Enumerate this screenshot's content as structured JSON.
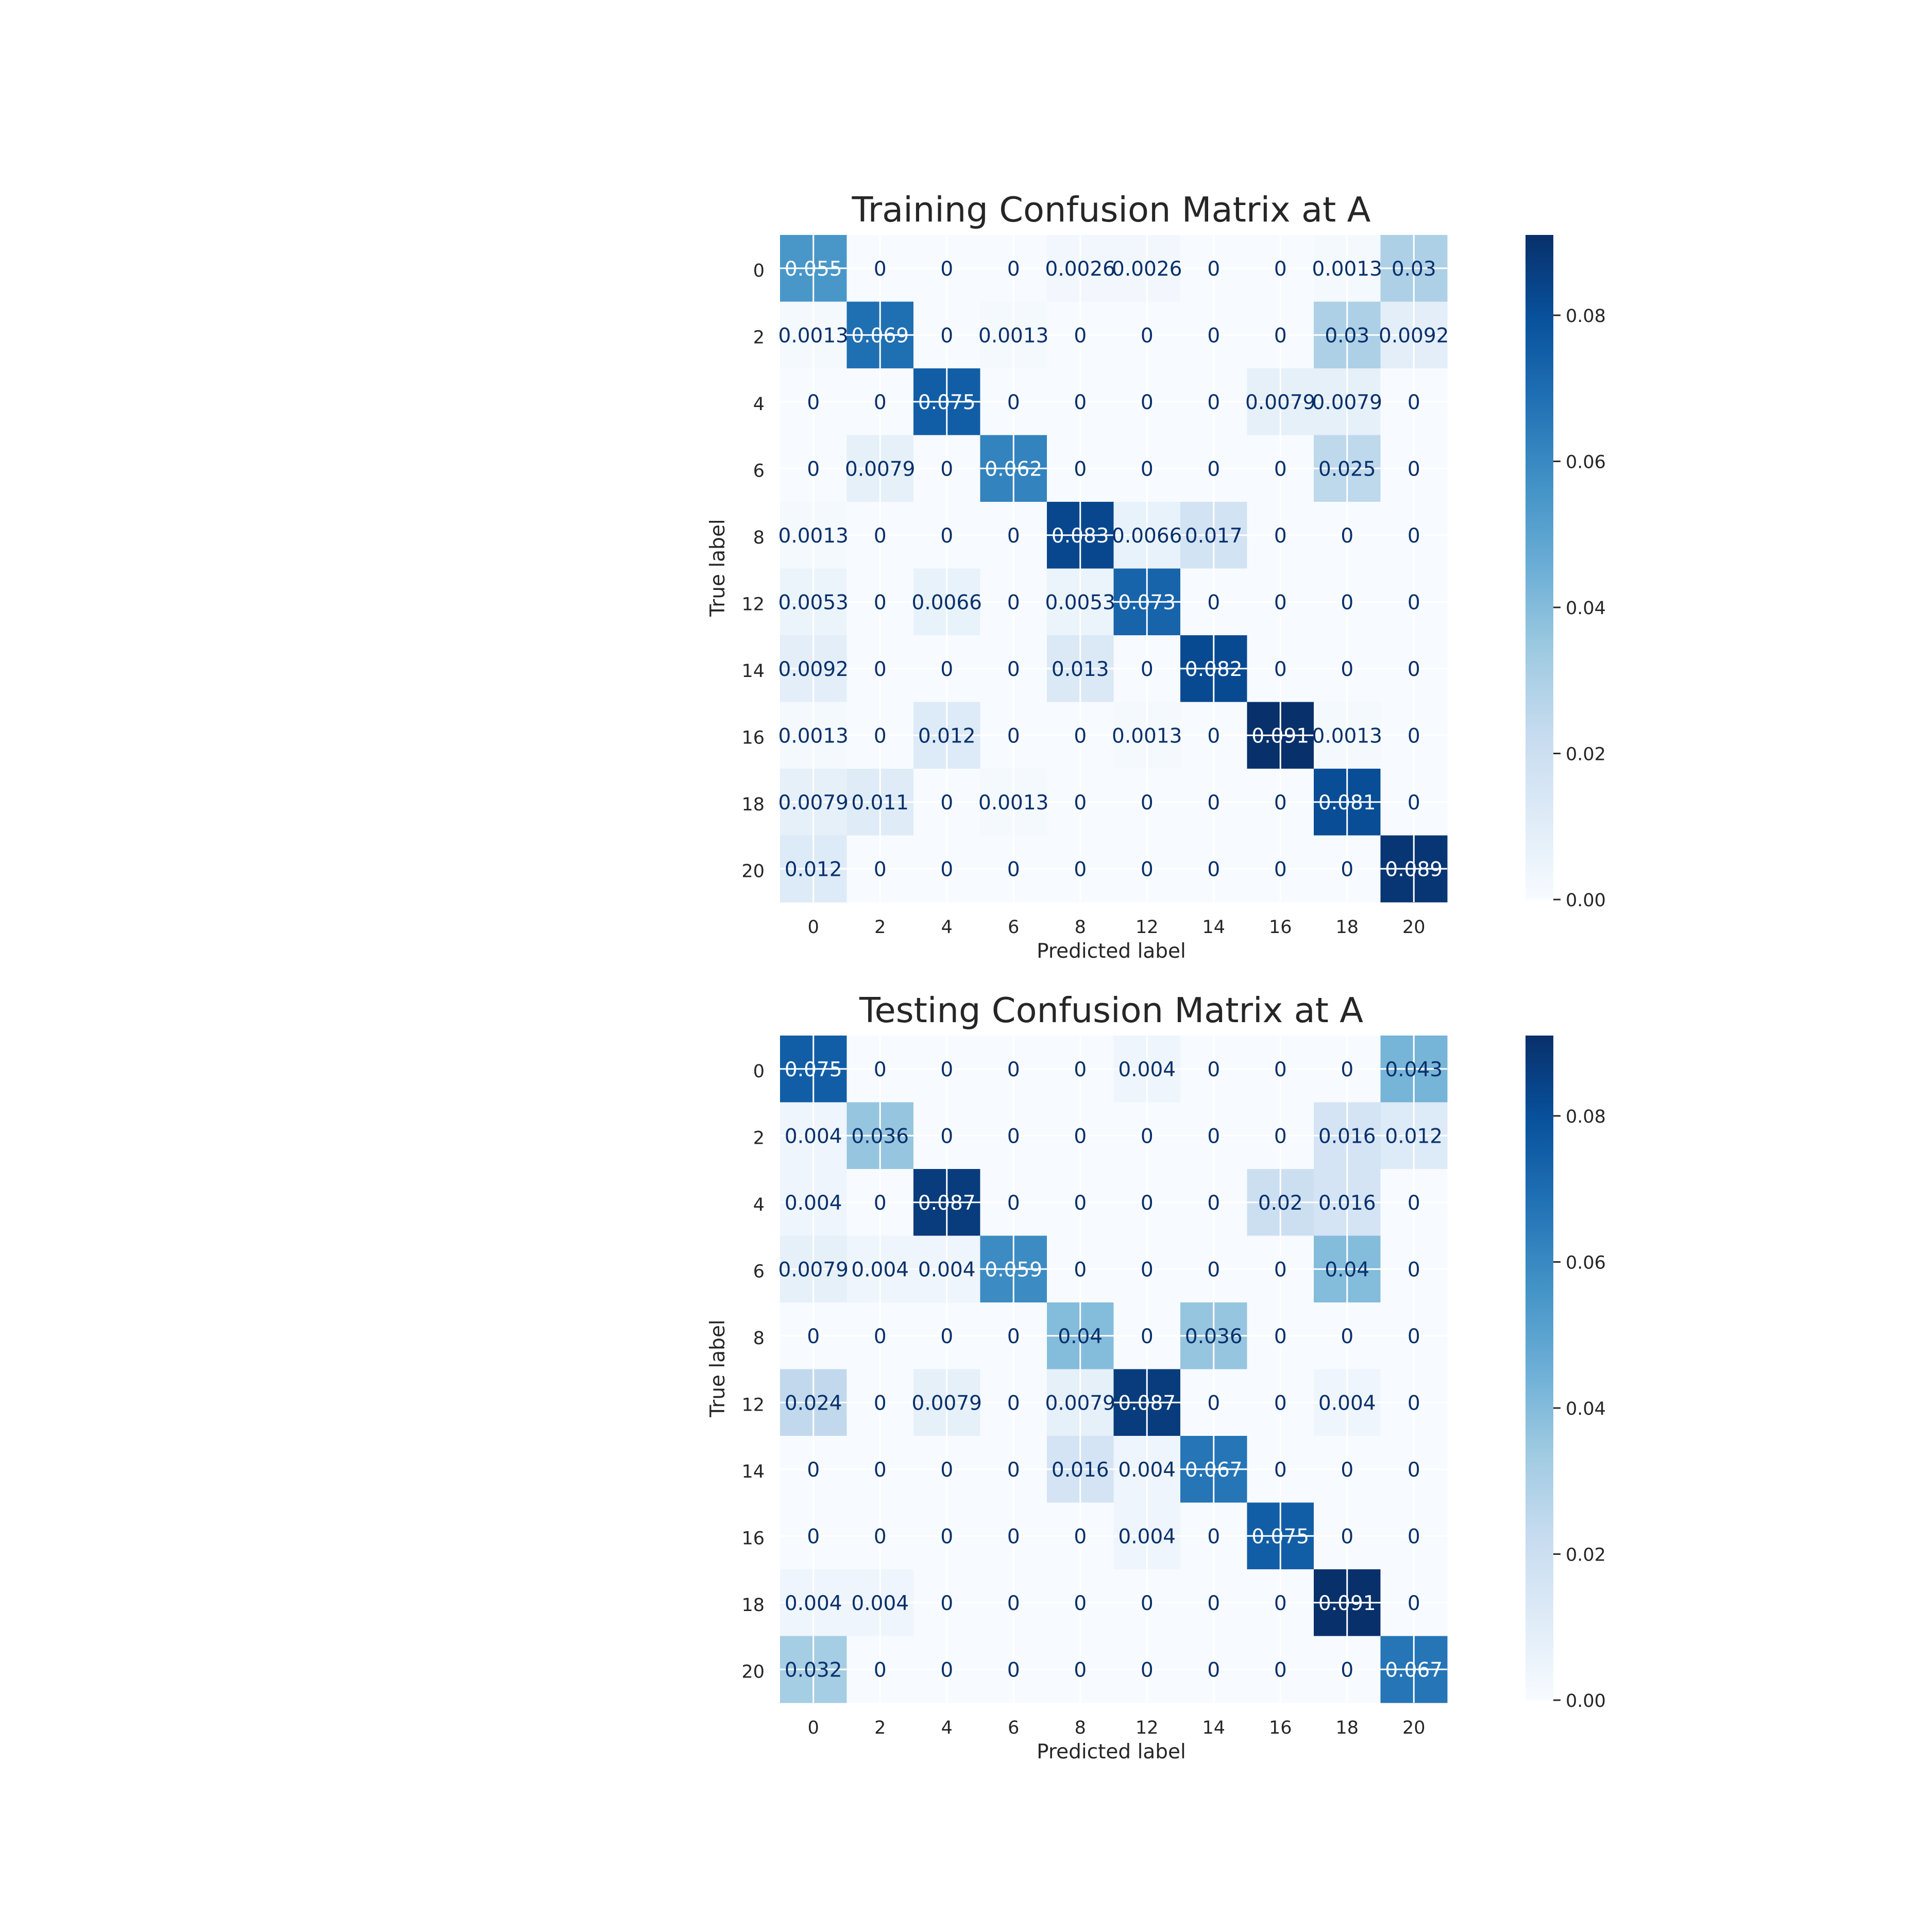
{
  "chart_data": [
    {
      "type": "heatmap",
      "title": "Training Confusion Matrix at A",
      "xlabel": "Predicted label",
      "ylabel": "True label",
      "x_tick_labels": [
        "0",
        "2",
        "4",
        "6",
        "8",
        "12",
        "14",
        "16",
        "18",
        "20"
      ],
      "y_tick_labels": [
        "0",
        "2",
        "4",
        "6",
        "8",
        "12",
        "14",
        "16",
        "18",
        "20"
      ],
      "cells": [
        [
          "0.055",
          "0",
          "0",
          "0",
          "0.0026",
          "0.0026",
          "0",
          "0",
          "0.0013",
          "0.03"
        ],
        [
          "0.0013",
          "0.069",
          "0",
          "0.0013",
          "0",
          "0",
          "0",
          "0",
          "0.03",
          "0.0092"
        ],
        [
          "0",
          "0",
          "0.075",
          "0",
          "0",
          "0",
          "0",
          "0.0079",
          "0.0079",
          "0"
        ],
        [
          "0",
          "0.0079",
          "0",
          "0.062",
          "0",
          "0",
          "0",
          "0",
          "0.025",
          "0"
        ],
        [
          "0.0013",
          "0",
          "0",
          "0",
          "0.083",
          "0.0066",
          "0.017",
          "0",
          "0",
          "0"
        ],
        [
          "0.0053",
          "0",
          "0.0066",
          "0",
          "0.0053",
          "0.073",
          "0",
          "0",
          "0",
          "0"
        ],
        [
          "0.0092",
          "0",
          "0",
          "0",
          "0.013",
          "0",
          "0.082",
          "0",
          "0",
          "0"
        ],
        [
          "0.0013",
          "0",
          "0.012",
          "0",
          "0",
          "0.0013",
          "0",
          "0.091",
          "0.0013",
          "0"
        ],
        [
          "0.0079",
          "0.011",
          "0",
          "0.0013",
          "0",
          "0",
          "0",
          "0",
          "0.081",
          "0"
        ],
        [
          "0.012",
          "0",
          "0",
          "0",
          "0",
          "0",
          "0",
          "0",
          "0",
          "0.089"
        ]
      ],
      "colorbar": {
        "range": [
          0,
          0.091
        ],
        "colormap": "Blues",
        "ticks": [
          0.0,
          0.02,
          0.04,
          0.06,
          0.08
        ],
        "tick_labels": [
          "0.00",
          "0.02",
          "0.04",
          "0.06",
          "0.08"
        ]
      }
    },
    {
      "type": "heatmap",
      "title": "Testing Confusion Matrix at A",
      "xlabel": "Predicted label",
      "ylabel": "True label",
      "x_tick_labels": [
        "0",
        "2",
        "4",
        "6",
        "8",
        "12",
        "14",
        "16",
        "18",
        "20"
      ],
      "y_tick_labels": [
        "0",
        "2",
        "4",
        "6",
        "8",
        "12",
        "14",
        "16",
        "18",
        "20"
      ],
      "cells": [
        [
          "0.075",
          "0",
          "0",
          "0",
          "0",
          "0.004",
          "0",
          "0",
          "0",
          "0.043"
        ],
        [
          "0.004",
          "0.036",
          "0",
          "0",
          "0",
          "0",
          "0",
          "0",
          "0.016",
          "0.012"
        ],
        [
          "0.004",
          "0",
          "0.087",
          "0",
          "0",
          "0",
          "0",
          "0.02",
          "0.016",
          "0"
        ],
        [
          "0.0079",
          "0.004",
          "0.004",
          "0.059",
          "0",
          "0",
          "0",
          "0",
          "0.04",
          "0"
        ],
        [
          "0",
          "0",
          "0",
          "0",
          "0.04",
          "0",
          "0.036",
          "0",
          "0",
          "0"
        ],
        [
          "0.024",
          "0",
          "0.0079",
          "0",
          "0.0079",
          "0.087",
          "0",
          "0",
          "0.004",
          "0"
        ],
        [
          "0",
          "0",
          "0",
          "0",
          "0.016",
          "0.004",
          "0.067",
          "0",
          "0",
          "0"
        ],
        [
          "0",
          "0",
          "0",
          "0",
          "0",
          "0.004",
          "0",
          "0.075",
          "0",
          "0"
        ],
        [
          "0.004",
          "0.004",
          "0",
          "0",
          "0",
          "0",
          "0",
          "0",
          "0.091",
          "0"
        ],
        [
          "0.032",
          "0",
          "0",
          "0",
          "0",
          "0",
          "0",
          "0",
          "0",
          "0.067"
        ]
      ],
      "colorbar": {
        "range": [
          0,
          0.091
        ],
        "colormap": "Blues",
        "ticks": [
          0.0,
          0.02,
          0.04,
          0.06,
          0.08
        ],
        "tick_labels": [
          "0.00",
          "0.02",
          "0.04",
          "0.06",
          "0.08"
        ]
      }
    }
  ]
}
